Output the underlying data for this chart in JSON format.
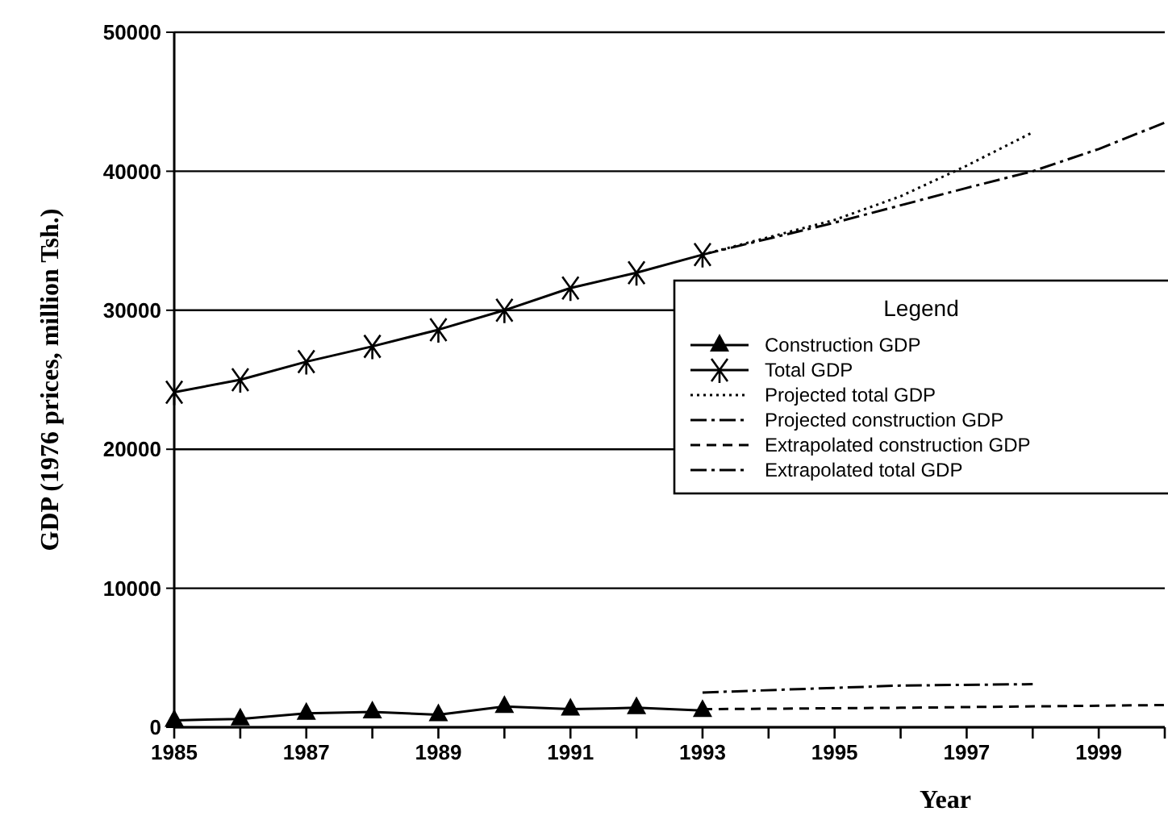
{
  "chart_data": {
    "type": "line",
    "xlabel": "Year",
    "ylabel": "GDP (1976 prices, million Tsh.)",
    "legend_title": "Legend",
    "legend": "right",
    "grid": "y",
    "xlim": [
      1985,
      2000
    ],
    "xticks": [
      1985,
      {
        "value": 1986,
        "label": null
      },
      1987,
      {
        "value": 1988,
        "label": null
      },
      1989,
      {
        "value": 1990,
        "label": null
      },
      1991,
      {
        "value": 1992,
        "label": null
      },
      1993,
      {
        "value": 1994,
        "label": null
      },
      1995,
      {
        "value": 1996,
        "label": null
      },
      1997,
      {
        "value": 1998,
        "label": null
      },
      1999,
      {
        "value": 2000,
        "label": null
      }
    ],
    "ylim": [
      0,
      50000
    ],
    "yticks": [
      0,
      10000,
      20000,
      30000,
      40000,
      50000
    ],
    "series": [
      {
        "name": "Construction GDP",
        "color": "#000000",
        "marker": "triangle",
        "line_style": "solid",
        "x": [
          1985,
          1986,
          1987,
          1988,
          1989,
          1990,
          1991,
          1992,
          1993
        ],
        "values": [
          500,
          600,
          1000,
          1100,
          900,
          1500,
          1300,
          1400,
          1200
        ]
      },
      {
        "name": "Total GDP",
        "color": "#000000",
        "marker": "cross",
        "line_style": "solid",
        "x": [
          1985,
          1986,
          1987,
          1988,
          1989,
          1990,
          1991,
          1992,
          1993
        ],
        "values": [
          24100,
          25000,
          26300,
          27400,
          28600,
          30000,
          31600,
          32700,
          34000
        ]
      },
      {
        "name": "Projected total GDP",
        "color": "#000000",
        "marker": "none",
        "line_style": "dotted",
        "x": [
          1993,
          1995,
          1996,
          1997,
          1998
        ],
        "values": [
          34000,
          36500,
          38200,
          40400,
          42800
        ]
      },
      {
        "name": "Projected construction GDP",
        "color": "#000000",
        "marker": "none",
        "line_style": "dashdot",
        "x": [
          1993,
          1996,
          1998
        ],
        "values": [
          2500,
          3000,
          3100
        ]
      },
      {
        "name": "Extrapolated construction GDP",
        "color": "#000000",
        "marker": "none",
        "line_style": "dashed",
        "x": [
          1993,
          1996,
          2000
        ],
        "values": [
          1300,
          1400,
          1600
        ]
      },
      {
        "name": "Extrapolated total GDP",
        "color": "#000000",
        "marker": "none",
        "line_style": "dashdot",
        "x": [
          1993,
          1995,
          1997,
          1998,
          1999,
          2000
        ],
        "values": [
          34000,
          36300,
          38800,
          40000,
          41600,
          43500
        ]
      }
    ]
  }
}
